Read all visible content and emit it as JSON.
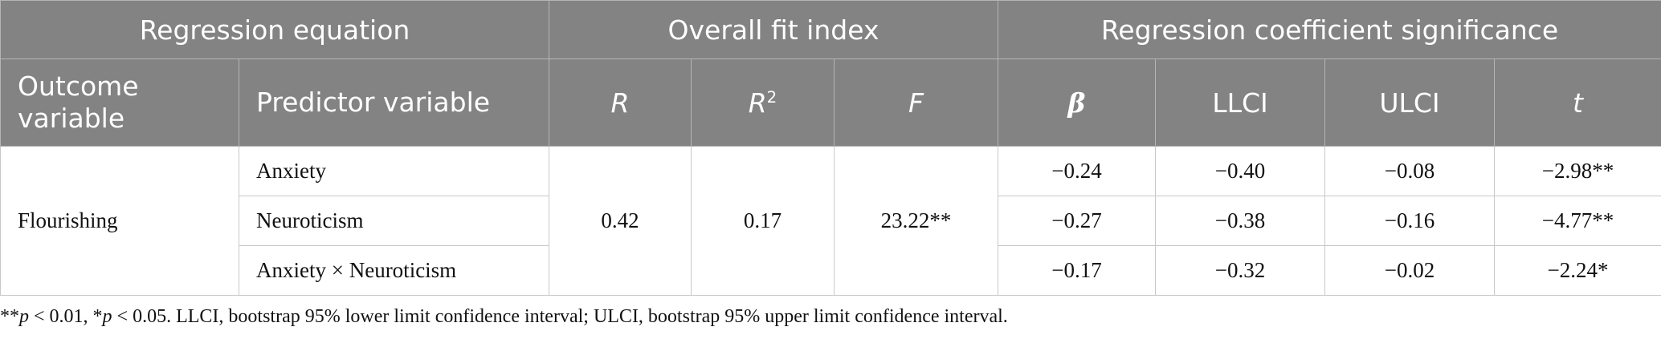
{
  "table": {
    "header_groups": [
      "Regression equation",
      "Overall fit index",
      "Regression coefficient significance"
    ],
    "columns": [
      {
        "text": "Outcome variable",
        "italic": false
      },
      {
        "text": "Predictor variable",
        "italic": false
      },
      {
        "text": "R",
        "italic": true
      },
      {
        "text": "R",
        "sup": "2",
        "italic": true
      },
      {
        "text": "F",
        "italic": true
      },
      {
        "text": "β",
        "italic": true
      },
      {
        "text": "LLCI",
        "italic": false
      },
      {
        "text": "ULCI",
        "italic": false
      },
      {
        "text": "t",
        "italic": true
      }
    ],
    "outcome": "Flourishing",
    "fit": [
      "0.42",
      "0.17",
      "23.22**"
    ],
    "rows": [
      {
        "predictor": "Anxiety",
        "coefficients": [
          "−0.24",
          "−0.40",
          "−0.08",
          "−2.98**"
        ]
      },
      {
        "predictor": "Neuroticism",
        "coefficients": [
          "−0.27",
          "−0.38",
          "−0.16",
          "−4.77**"
        ]
      },
      {
        "predictor": "Anxiety × Neuroticism",
        "coefficients": [
          "−0.17",
          "−0.32",
          "−0.02",
          "−2.24*"
        ]
      }
    ],
    "footnote": [
      {
        "text": "**",
        "italic": false
      },
      {
        "text": "p",
        "italic": true
      },
      {
        "text": " < 0.01, *",
        "italic": false
      },
      {
        "text": "p",
        "italic": true
      },
      {
        "text": " < 0.05. LLCI, bootstrap 95% lower limit confidence interval; ULCI, bootstrap 95% upper limit confidence interval.",
        "italic": false
      }
    ]
  }
}
